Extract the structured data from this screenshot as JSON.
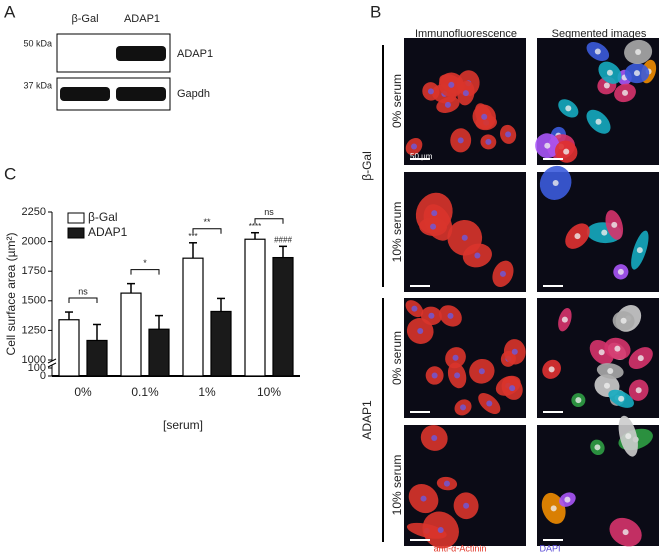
{
  "panel_a": {
    "label": "A",
    "lanes": [
      "β-Gal",
      "ADAP1"
    ],
    "rows": [
      {
        "marker": "50 kDa",
        "protein": "ADAP1"
      },
      {
        "marker": "37 kDa",
        "protein": "Gapdh"
      }
    ]
  },
  "panel_b": {
    "label": "B",
    "columns": [
      "Immunofluorescence",
      "Segmented images"
    ],
    "groups": [
      {
        "name": "β-Gal",
        "rows": [
          "0% serum",
          "10% serum"
        ]
      },
      {
        "name": "ADAP1",
        "rows": [
          "0% serum",
          "10% serum"
        ]
      }
    ],
    "scale_bar": "50 µm",
    "stains": [
      "anti-α-Actinin",
      "DAPI"
    ]
  },
  "chart_data": {
    "type": "bar",
    "panel_label": "C",
    "ylabel": "Cell surface area (µm²)",
    "xlabel": "[serum]",
    "categories": [
      "0%",
      "0.1%",
      "1%",
      "10%"
    ],
    "series": [
      {
        "name": "β-Gal",
        "color": "#ffffff",
        "values": [
          1340,
          1565,
          1860,
          2020
        ],
        "errors": [
          65,
          80,
          130,
          55
        ],
        "annotations": [
          null,
          null,
          "***",
          "****"
        ]
      },
      {
        "name": "ADAP1",
        "color": "#1a1a1a",
        "values": [
          1165,
          1260,
          1410,
          1865
        ],
        "errors": [
          135,
          115,
          110,
          95
        ],
        "annotations": [
          null,
          null,
          null,
          "####"
        ]
      }
    ],
    "significance": [
      "ns",
      "*",
      "**",
      "ns"
    ],
    "ylim": [
      1000,
      2250
    ],
    "yticks": [
      1000,
      1250,
      1500,
      1750,
      2000,
      2250
    ],
    "ybreak_lim": [
      0,
      100
    ],
    "ybreak_ticks": [
      0,
      100
    ],
    "legend": "upper left"
  }
}
